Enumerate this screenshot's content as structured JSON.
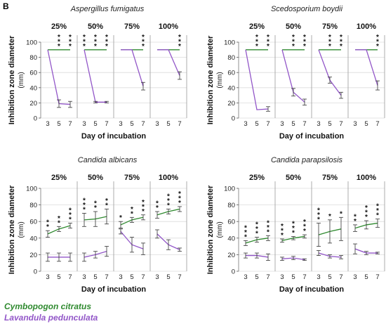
{
  "figure": {
    "panel_label": "B",
    "legend": [
      {
        "name": "Cymbopogon citratus",
        "color": "#2f8a2f"
      },
      {
        "name": "Lavandula pedunculata",
        "color": "#9256c8"
      }
    ]
  },
  "chart_data": [
    {
      "type": "line",
      "title": "Aspergillus fumigatus",
      "ylabel": "Inhibition zone diameter (mm)",
      "xlabel": "Day of incubation",
      "ylim": [
        0,
        100
      ],
      "yticks": [
        0,
        20,
        40,
        60,
        80,
        100
      ],
      "days": [
        3,
        5,
        7
      ],
      "concentrations": [
        {
          "label": "25%",
          "green": [
            90,
            90,
            90
          ],
          "purple": [
            90,
            19,
            18
          ],
          "purple_err": [
            0,
            5,
            4
          ],
          "stars": [
            "",
            "***",
            "***"
          ]
        },
        {
          "label": "50%",
          "green": [
            90,
            90,
            90
          ],
          "purple": [
            90,
            21,
            21
          ],
          "purple_err": [
            0,
            1,
            1
          ],
          "stars": [
            "***",
            "***",
            "***"
          ]
        },
        {
          "label": "75%",
          "green": [
            90,
            90,
            90
          ],
          "purple": [
            90,
            90,
            42
          ],
          "purple_err": [
            0,
            0,
            5
          ],
          "stars": [
            "",
            "",
            "***"
          ]
        },
        {
          "label": "100%",
          "green": [
            90,
            90,
            90
          ],
          "purple": [
            90,
            90,
            56
          ],
          "purple_err": [
            0,
            0,
            5
          ],
          "stars": [
            "",
            "",
            "***"
          ]
        }
      ]
    },
    {
      "type": "line",
      "title": "Scedosporium boydii",
      "ylabel": "Inhibition zone diameter (mm)",
      "xlabel": "Day of incubation",
      "ylim": [
        0,
        100
      ],
      "yticks": [
        0,
        20,
        40,
        60,
        80,
        100
      ],
      "days": [
        3,
        5,
        7
      ],
      "concentrations": [
        {
          "label": "25%",
          "green": [
            90,
            90,
            90
          ],
          "purple": [
            90,
            11,
            12
          ],
          "purple_err": [
            0,
            0,
            3
          ],
          "stars": [
            "",
            "***",
            "***"
          ]
        },
        {
          "label": "50%",
          "green": [
            90,
            90,
            90
          ],
          "purple": [
            90,
            34,
            21
          ],
          "purple_err": [
            0,
            5,
            4
          ],
          "stars": [
            "",
            "***",
            "***"
          ]
        },
        {
          "label": "75%",
          "green": [
            90,
            90,
            90
          ],
          "purple": [
            90,
            50,
            30
          ],
          "purple_err": [
            0,
            4,
            4
          ],
          "stars": [
            "",
            "***",
            "***"
          ]
        },
        {
          "label": "100%",
          "green": [
            90,
            90,
            90
          ],
          "purple": [
            90,
            90,
            43
          ],
          "purple_err": [
            0,
            0,
            6
          ],
          "stars": [
            "",
            "",
            "***"
          ]
        }
      ]
    },
    {
      "type": "line",
      "title": "Candida albicans",
      "ylabel": "Inhibition zone diameter (mm)",
      "xlabel": "Day of incubation",
      "ylim": [
        0,
        100
      ],
      "yticks": [
        0,
        20,
        40,
        60,
        80,
        100
      ],
      "days": [
        3,
        5,
        7
      ],
      "concentrations": [
        {
          "label": "25%",
          "green": [
            45,
            51,
            55
          ],
          "green_err": [
            4,
            3,
            3
          ],
          "purple": [
            17,
            17,
            17
          ],
          "purple_err": [
            5,
            5,
            5
          ],
          "stars": [
            "**",
            "**",
            "***"
          ]
        },
        {
          "label": "50%",
          "green": [
            62,
            63,
            66
          ],
          "green_err": [
            8,
            9,
            9
          ],
          "purple": [
            17,
            20,
            24
          ],
          "purple_err": [
            5,
            4,
            6
          ],
          "stars": [
            "***",
            "**",
            "**"
          ]
        },
        {
          "label": "75%",
          "green": [
            56,
            62,
            65
          ],
          "green_err": [
            4,
            3,
            3
          ],
          "purple": [
            48,
            32,
            27
          ],
          "purple_err": [
            3,
            9,
            7
          ],
          "stars": [
            "*",
            "**",
            "***"
          ]
        },
        {
          "label": "100%",
          "green": [
            68,
            72,
            75
          ],
          "green_err": [
            4,
            3,
            3
          ],
          "purple": [
            45,
            32,
            26
          ],
          "purple_err": [
            5,
            6,
            2
          ],
          "stars": [
            "**",
            "***",
            "***"
          ]
        }
      ]
    },
    {
      "type": "line",
      "title": "Candida parapsilosis",
      "ylabel": "Inhibition zone diameter (mm)",
      "xlabel": "Day of incubation",
      "ylim": [
        0,
        100
      ],
      "yticks": [
        0,
        20,
        40,
        60,
        80,
        100
      ],
      "days": [
        3,
        5,
        7
      ],
      "concentrations": [
        {
          "label": "25%",
          "green": [
            34,
            38,
            40
          ],
          "green_err": [
            3,
            3,
            3
          ],
          "purple": [
            19,
            19,
            17
          ],
          "purple_err": [
            3,
            3,
            4
          ],
          "stars": [
            "***",
            "***",
            "***"
          ]
        },
        {
          "label": "50%",
          "green": [
            37,
            40,
            42
          ],
          "green_err": [
            2,
            2,
            2
          ],
          "purple": [
            15,
            16,
            14
          ],
          "purple_err": [
            2,
            2,
            1
          ],
          "stars": [
            "***",
            "***",
            "***"
          ]
        },
        {
          "label": "75%",
          "green": [
            44,
            48,
            51
          ],
          "green_err": [
            14,
            14,
            14
          ],
          "purple": [
            22,
            18,
            17
          ],
          "purple_err": [
            3,
            2,
            2
          ],
          "stars": [
            "***",
            "*",
            "*"
          ]
        },
        {
          "label": "100%",
          "green": [
            52,
            56,
            58
          ],
          "green_err": [
            4,
            5,
            5
          ],
          "purple": [
            27,
            22,
            22
          ],
          "purple_err": [
            6,
            2,
            1
          ],
          "stars": [
            "**",
            "***",
            "***"
          ]
        }
      ]
    }
  ]
}
